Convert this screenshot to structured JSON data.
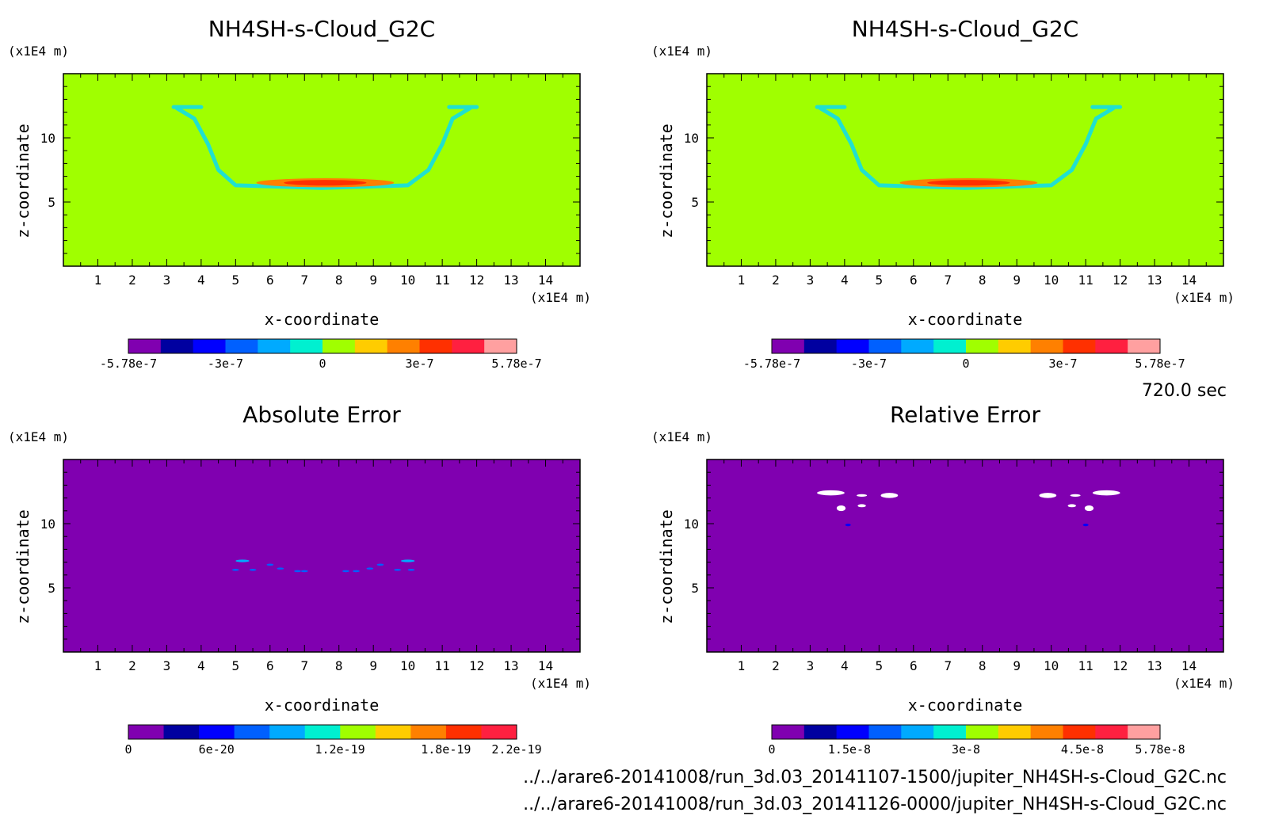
{
  "time_label": "720.0 sec",
  "files": [
    "../../arare6-20141008/run_3d.03_20141107-1500/jupiter_NH4SH-s-Cloud_G2C.nc",
    "../../arare6-20141008/run_3d.03_20141126-0000/jupiter_NH4SH-s-Cloud_G2C.nc"
  ],
  "chart_data": [
    {
      "type": "heatmap",
      "title": "NH4SH-s-Cloud_G2C",
      "xlabel": "x-coordinate",
      "ylabel": "z-coordinate",
      "x_unit": "(x1E4 m)",
      "y_unit": "(x1E4 m)",
      "xlim": [
        0,
        15
      ],
      "ylim": [
        0,
        15
      ],
      "x_ticks": [
        "1",
        "2",
        "3",
        "4",
        "5",
        "6",
        "7",
        "8",
        "9",
        "10",
        "11",
        "12",
        "13",
        "14"
      ],
      "y_ticks": [
        "5",
        "10"
      ],
      "background_value": 0,
      "colorbar": {
        "colors": [
          "#8000b0",
          "#0000a0",
          "#0000ff",
          "#0060ff",
          "#00aaff",
          "#00f0d0",
          "#a0ff00",
          "#ffcc00",
          "#ff8000",
          "#ff3000",
          "#ff2040",
          "#ffa0a0"
        ],
        "labels": [
          "-5.78e-7",
          "-3e-7",
          "0",
          "3e-7",
          "5.78e-7"
        ]
      },
      "features": [
        {
          "kind": "outline",
          "color": "#20e0d0",
          "points": [
            [
              3.3,
              12.3
            ],
            [
              3.8,
              11.5
            ],
            [
              4.2,
              9.5
            ],
            [
              4.5,
              7.5
            ],
            [
              5.0,
              6.3
            ],
            [
              7.5,
              6.1
            ],
            [
              10.0,
              6.3
            ],
            [
              10.6,
              7.5
            ],
            [
              11.0,
              9.5
            ],
            [
              11.3,
              11.5
            ],
            [
              11.8,
              12.3
            ]
          ]
        },
        {
          "kind": "outline",
          "color": "#20e0d0",
          "points": [
            [
              3.2,
              12.4
            ],
            [
              4.0,
              12.4
            ]
          ]
        },
        {
          "kind": "outline",
          "color": "#20e0d0",
          "points": [
            [
              11.2,
              12.4
            ],
            [
              12.0,
              12.4
            ]
          ]
        },
        {
          "kind": "blob",
          "color": "#ff8000",
          "cx": 7.6,
          "cy": 6.5,
          "rx": 2.0,
          "ry": 0.35
        },
        {
          "kind": "blob",
          "color": "#ff3000",
          "cx": 7.6,
          "cy": 6.5,
          "rx": 1.2,
          "ry": 0.22
        }
      ]
    },
    {
      "type": "heatmap",
      "title": "NH4SH-s-Cloud_G2C",
      "xlabel": "x-coordinate",
      "ylabel": "z-coordinate",
      "x_unit": "(x1E4 m)",
      "y_unit": "(x1E4 m)",
      "xlim": [
        0,
        15
      ],
      "ylim": [
        0,
        15
      ],
      "x_ticks": [
        "1",
        "2",
        "3",
        "4",
        "5",
        "6",
        "7",
        "8",
        "9",
        "10",
        "11",
        "12",
        "13",
        "14"
      ],
      "y_ticks": [
        "5",
        "10"
      ],
      "background_value": 0,
      "colorbar": {
        "colors": [
          "#8000b0",
          "#0000a0",
          "#0000ff",
          "#0060ff",
          "#00aaff",
          "#00f0d0",
          "#a0ff00",
          "#ffcc00",
          "#ff8000",
          "#ff3000",
          "#ff2040",
          "#ffa0a0"
        ],
        "labels": [
          "-5.78e-7",
          "-3e-7",
          "0",
          "3e-7",
          "5.78e-7"
        ]
      },
      "features": [
        {
          "kind": "outline",
          "color": "#20e0d0",
          "points": [
            [
              3.3,
              12.3
            ],
            [
              3.8,
              11.5
            ],
            [
              4.2,
              9.5
            ],
            [
              4.5,
              7.5
            ],
            [
              5.0,
              6.3
            ],
            [
              7.5,
              6.1
            ],
            [
              10.0,
              6.3
            ],
            [
              10.6,
              7.5
            ],
            [
              11.0,
              9.5
            ],
            [
              11.3,
              11.5
            ],
            [
              11.8,
              12.3
            ]
          ]
        },
        {
          "kind": "outline",
          "color": "#20e0d0",
          "points": [
            [
              3.2,
              12.4
            ],
            [
              4.0,
              12.4
            ]
          ]
        },
        {
          "kind": "outline",
          "color": "#20e0d0",
          "points": [
            [
              11.2,
              12.4
            ],
            [
              12.0,
              12.4
            ]
          ]
        },
        {
          "kind": "blob",
          "color": "#ff8000",
          "cx": 7.6,
          "cy": 6.5,
          "rx": 2.0,
          "ry": 0.35
        },
        {
          "kind": "blob",
          "color": "#ff3000",
          "cx": 7.6,
          "cy": 6.5,
          "rx": 1.2,
          "ry": 0.22
        }
      ]
    },
    {
      "type": "heatmap",
      "title": "Absolute Error",
      "xlabel": "x-coordinate",
      "ylabel": "z-coordinate",
      "x_unit": "(x1E4 m)",
      "y_unit": "(x1E4 m)",
      "xlim": [
        0,
        15
      ],
      "ylim": [
        0,
        15
      ],
      "x_ticks": [
        "1",
        "2",
        "3",
        "4",
        "5",
        "6",
        "7",
        "8",
        "9",
        "10",
        "11",
        "12",
        "13",
        "14"
      ],
      "y_ticks": [
        "5",
        "10"
      ],
      "background_value": 0,
      "colorbar": {
        "colors": [
          "#8000b0",
          "#0000a0",
          "#0000ff",
          "#0060ff",
          "#00aaff",
          "#00f0d0",
          "#a0ff00",
          "#ffcc00",
          "#ff8000",
          "#ff3000",
          "#ff2040"
        ],
        "labels": [
          "0",
          "6e-20",
          "1.2e-19",
          "1.8e-19",
          "2.2e-19"
        ]
      },
      "features": [
        {
          "kind": "blob",
          "color": "#00aaff",
          "cx": 5.2,
          "cy": 7.1,
          "rx": 0.2,
          "ry": 0.1
        },
        {
          "kind": "blob",
          "color": "#00aaff",
          "cx": 10.0,
          "cy": 7.1,
          "rx": 0.2,
          "ry": 0.1
        },
        {
          "kind": "blob",
          "color": "#0060ff",
          "cx": 5.0,
          "cy": 6.4,
          "rx": 0.1,
          "ry": 0.08
        },
        {
          "kind": "blob",
          "color": "#0060ff",
          "cx": 5.5,
          "cy": 6.4,
          "rx": 0.1,
          "ry": 0.08
        },
        {
          "kind": "blob",
          "color": "#0060ff",
          "cx": 6.0,
          "cy": 6.8,
          "rx": 0.1,
          "ry": 0.08
        },
        {
          "kind": "blob",
          "color": "#0060ff",
          "cx": 6.3,
          "cy": 6.5,
          "rx": 0.1,
          "ry": 0.08
        },
        {
          "kind": "blob",
          "color": "#0060ff",
          "cx": 6.8,
          "cy": 6.3,
          "rx": 0.1,
          "ry": 0.08
        },
        {
          "kind": "blob",
          "color": "#0060ff",
          "cx": 7.0,
          "cy": 6.3,
          "rx": 0.1,
          "ry": 0.08
        },
        {
          "kind": "blob",
          "color": "#0060ff",
          "cx": 8.2,
          "cy": 6.3,
          "rx": 0.1,
          "ry": 0.08
        },
        {
          "kind": "blob",
          "color": "#0060ff",
          "cx": 8.5,
          "cy": 6.3,
          "rx": 0.1,
          "ry": 0.08
        },
        {
          "kind": "blob",
          "color": "#0060ff",
          "cx": 8.9,
          "cy": 6.5,
          "rx": 0.1,
          "ry": 0.08
        },
        {
          "kind": "blob",
          "color": "#0060ff",
          "cx": 9.2,
          "cy": 6.8,
          "rx": 0.1,
          "ry": 0.08
        },
        {
          "kind": "blob",
          "color": "#0060ff",
          "cx": 9.7,
          "cy": 6.4,
          "rx": 0.1,
          "ry": 0.08
        },
        {
          "kind": "blob",
          "color": "#0060ff",
          "cx": 10.1,
          "cy": 6.4,
          "rx": 0.1,
          "ry": 0.08
        }
      ]
    },
    {
      "type": "heatmap",
      "title": "Relative Error",
      "xlabel": "x-coordinate",
      "ylabel": "z-coordinate",
      "x_unit": "(x1E4 m)",
      "y_unit": "(x1E4 m)",
      "xlim": [
        0,
        15
      ],
      "ylim": [
        0,
        15
      ],
      "x_ticks": [
        "1",
        "2",
        "3",
        "4",
        "5",
        "6",
        "7",
        "8",
        "9",
        "10",
        "11",
        "12",
        "13",
        "14"
      ],
      "y_ticks": [
        "5",
        "10"
      ],
      "background_value": 0,
      "colorbar": {
        "colors": [
          "#8000b0",
          "#0000a0",
          "#0000ff",
          "#0060ff",
          "#00aaff",
          "#00f0d0",
          "#a0ff00",
          "#ffcc00",
          "#ff8000",
          "#ff3000",
          "#ff2040",
          "#ffa0a0"
        ],
        "labels": [
          "0",
          "1.5e-8",
          "3e-8",
          "4.5e-8",
          "5.78e-8"
        ]
      },
      "features": [
        {
          "kind": "blob",
          "color": "#ffffff",
          "cx": 3.6,
          "cy": 12.4,
          "rx": 0.4,
          "ry": 0.2
        },
        {
          "kind": "blob",
          "color": "#ffffff",
          "cx": 4.5,
          "cy": 12.2,
          "rx": 0.15,
          "ry": 0.1
        },
        {
          "kind": "blob",
          "color": "#ffffff",
          "cx": 5.3,
          "cy": 12.2,
          "rx": 0.25,
          "ry": 0.2
        },
        {
          "kind": "blob",
          "color": "#ffffff",
          "cx": 4.5,
          "cy": 11.4,
          "rx": 0.12,
          "ry": 0.12
        },
        {
          "kind": "blob",
          "color": "#ffffff",
          "cx": 3.9,
          "cy": 11.2,
          "rx": 0.13,
          "ry": 0.22
        },
        {
          "kind": "blob",
          "color": "#0000ff",
          "cx": 4.1,
          "cy": 9.9,
          "rx": 0.08,
          "ry": 0.1
        },
        {
          "kind": "blob",
          "color": "#ffffff",
          "cx": 11.6,
          "cy": 12.4,
          "rx": 0.4,
          "ry": 0.2
        },
        {
          "kind": "blob",
          "color": "#ffffff",
          "cx": 10.7,
          "cy": 12.2,
          "rx": 0.15,
          "ry": 0.1
        },
        {
          "kind": "blob",
          "color": "#ffffff",
          "cx": 9.9,
          "cy": 12.2,
          "rx": 0.25,
          "ry": 0.2
        },
        {
          "kind": "blob",
          "color": "#ffffff",
          "cx": 10.6,
          "cy": 11.4,
          "rx": 0.12,
          "ry": 0.12
        },
        {
          "kind": "blob",
          "color": "#ffffff",
          "cx": 11.1,
          "cy": 11.2,
          "rx": 0.13,
          "ry": 0.22
        },
        {
          "kind": "blob",
          "color": "#0000ff",
          "cx": 11.0,
          "cy": 9.9,
          "rx": 0.08,
          "ry": 0.1
        }
      ]
    }
  ]
}
